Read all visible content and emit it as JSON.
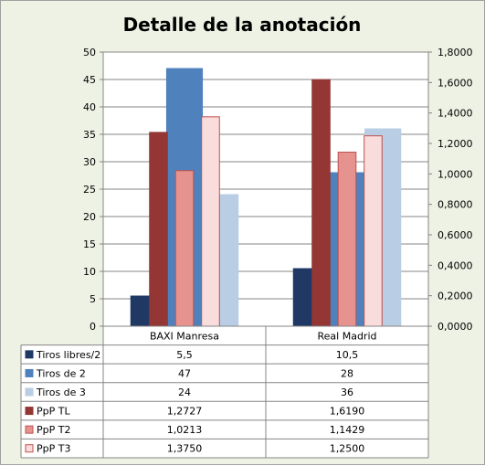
{
  "chart_data": {
    "type": "bar",
    "title": "Detalle de la anotación",
    "categories": [
      "BAXI Manresa",
      "Real Madrid"
    ],
    "y_left": {
      "ylim": [
        0,
        50
      ],
      "ticks": [
        "0",
        "5",
        "10",
        "15",
        "20",
        "25",
        "30",
        "35",
        "40",
        "45",
        "50"
      ]
    },
    "y_right": {
      "ylim": [
        0,
        1.8
      ],
      "ticks": [
        "0,0000",
        "0,2000",
        "0,4000",
        "0,6000",
        "0,8000",
        "1,0000",
        "1,2000",
        "1,4000",
        "1,6000",
        "1,8000"
      ]
    },
    "grid": true,
    "legend": "table-bottom",
    "series": [
      {
        "name": "Tiros libres/2",
        "axis": "left",
        "color": "#1f3864",
        "border": "#1f3864",
        "values": [
          5.5,
          10.5
        ],
        "labels": [
          "5,5",
          "10,5"
        ]
      },
      {
        "name": "Tiros de 2",
        "axis": "left",
        "color": "#4f81bd",
        "border": "#4f81bd",
        "values": [
          47,
          28
        ],
        "labels": [
          "47",
          "28"
        ]
      },
      {
        "name": "Tiros de 3",
        "axis": "left",
        "color": "#b9cde5",
        "border": "#b9cde5",
        "values": [
          24,
          36
        ],
        "labels": [
          "24",
          "36"
        ]
      },
      {
        "name": "PpP TL",
        "axis": "right",
        "color": "#943634",
        "border": "#943634",
        "values": [
          1.2727,
          1.619
        ],
        "labels": [
          "1,2727",
          "1,6190"
        ]
      },
      {
        "name": "PpP T2",
        "axis": "right",
        "color": "#e6928f",
        "border": "#c0504d",
        "values": [
          1.0213,
          1.1429
        ],
        "labels": [
          "1,0213",
          "1,1429"
        ]
      },
      {
        "name": "PpP T3",
        "axis": "right",
        "color": "#f9dcdc",
        "border": "#c0504d",
        "values": [
          1.375,
          1.25
        ],
        "labels": [
          "1,3750",
          "1,2500"
        ]
      }
    ]
  }
}
